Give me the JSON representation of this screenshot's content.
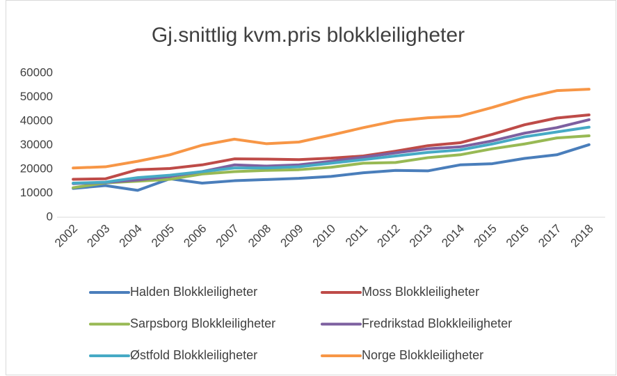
{
  "chart_data": {
    "type": "line",
    "title": "Gj.snittlig kvm.pris blokkleiligheter",
    "categories": [
      "2002",
      "2003",
      "2004",
      "2005",
      "2006",
      "2007",
      "2008",
      "2009",
      "2010",
      "2011",
      "2012",
      "2013",
      "2014",
      "2015",
      "2016",
      "2017",
      "2018"
    ],
    "ylim": [
      0,
      60000
    ],
    "yticks": [
      0,
      10000,
      20000,
      30000,
      40000,
      50000,
      60000
    ],
    "grid": false,
    "legend": "bottom",
    "series": [
      {
        "name": "Halden Blokkleiligheter",
        "color": "#4a7ebb",
        "values": [
          12000,
          13200,
          11200,
          16000,
          14200,
          15200,
          15700,
          16200,
          17000,
          18500,
          19500,
          19300,
          21800,
          22300,
          24500,
          26000,
          30200
        ]
      },
      {
        "name": "Moss Blokkleiligheter",
        "color": "#be4b48",
        "values": [
          15800,
          16000,
          19800,
          20300,
          21800,
          24300,
          24200,
          24000,
          24600,
          25500,
          27500,
          29800,
          31000,
          34500,
          38500,
          41300,
          42600
        ]
      },
      {
        "name": "Sarpsborg Blokkleiligheter",
        "color": "#98b954",
        "values": [
          12300,
          14300,
          15000,
          15800,
          18000,
          19000,
          19500,
          19800,
          20800,
          22500,
          22800,
          24800,
          26000,
          28500,
          30500,
          33000,
          33900
        ]
      },
      {
        "name": "Fredrikstad Blokkleiligheter",
        "color": "#7d60a0",
        "values": [
          14000,
          14500,
          15500,
          17000,
          19000,
          21800,
          21300,
          21800,
          23300,
          25000,
          26800,
          28500,
          29300,
          31800,
          35000,
          37300,
          40600
        ]
      },
      {
        "name": "Østfold Blokkleiligheter",
        "color": "#46aac5",
        "values": [
          14200,
          14600,
          16500,
          17500,
          19000,
          20500,
          20500,
          21000,
          22500,
          24000,
          25500,
          27000,
          28000,
          30500,
          33500,
          35500,
          37500
        ]
      },
      {
        "name": "Norge Blokkleiligheter",
        "color": "#f79646",
        "values": [
          20500,
          21000,
          23300,
          26000,
          30000,
          32500,
          30600,
          31300,
          34200,
          37300,
          40100,
          41400,
          42100,
          45700,
          49700,
          52700,
          53300
        ]
      }
    ]
  }
}
